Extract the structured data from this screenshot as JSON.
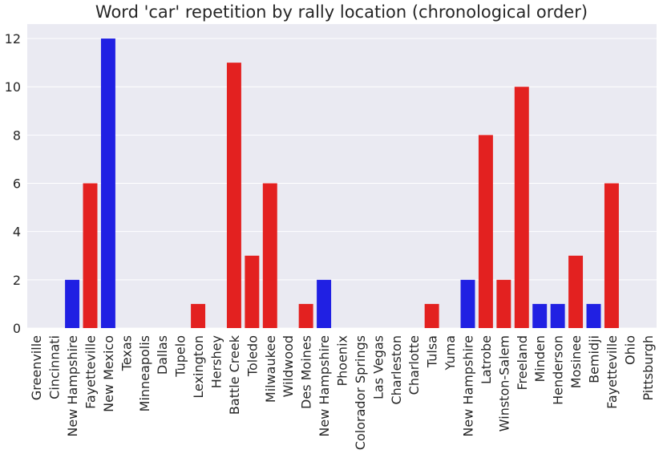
{
  "chart_data": {
    "type": "bar",
    "title": "Word 'car' repetition by rally location (chronological order)",
    "xlabel": "",
    "ylabel": "",
    "ylim": [
      0,
      12.6
    ],
    "yticks": [
      0,
      2,
      4,
      6,
      8,
      10,
      12
    ],
    "grid": true,
    "categories": [
      "Greenville",
      "Cincinnati",
      "New Hampshire",
      "Fayetteville",
      "New Mexico",
      "Texas",
      "Minneapolis",
      "Dallas",
      "Tupelo",
      "Lexington",
      "Hershey",
      "Battle Creek",
      "Toledo",
      "Milwaukee",
      "Wildwood",
      "Des Moines",
      "New Hampshire",
      "Phoenix",
      "Colorador Springs",
      "Las Vegas",
      "Charleston",
      "Charlotte",
      "Tulsa",
      "Yuma",
      "New Hampshire",
      "Latrobe",
      "Winston-Salem",
      "Freeland",
      "Minden",
      "Henderson",
      "Mosinee",
      "Bemidji",
      "Fayetteville",
      "Ohio",
      "Pittsburgh"
    ],
    "values": [
      0,
      0,
      2,
      6,
      12,
      0,
      0,
      0,
      0,
      1,
      0,
      11,
      3,
      6,
      0,
      1,
      2,
      0,
      0,
      0,
      0,
      0,
      1,
      0,
      2,
      8,
      2,
      10,
      1,
      1,
      3,
      1,
      6,
      0,
      0
    ],
    "bar_colors": [
      "red",
      "red",
      "blue",
      "red",
      "blue",
      "red",
      "red",
      "red",
      "red",
      "red",
      "red",
      "red",
      "red",
      "red",
      "red",
      "red",
      "blue",
      "red",
      "red",
      "red",
      "red",
      "red",
      "red",
      "red",
      "blue",
      "red",
      "red",
      "red",
      "blue",
      "blue",
      "red",
      "blue",
      "red",
      "red",
      "red"
    ],
    "colors": {
      "red": "#e32120",
      "blue": "#2020e3",
      "background": "#eaeaf2",
      "grid": "#ffffff"
    }
  }
}
